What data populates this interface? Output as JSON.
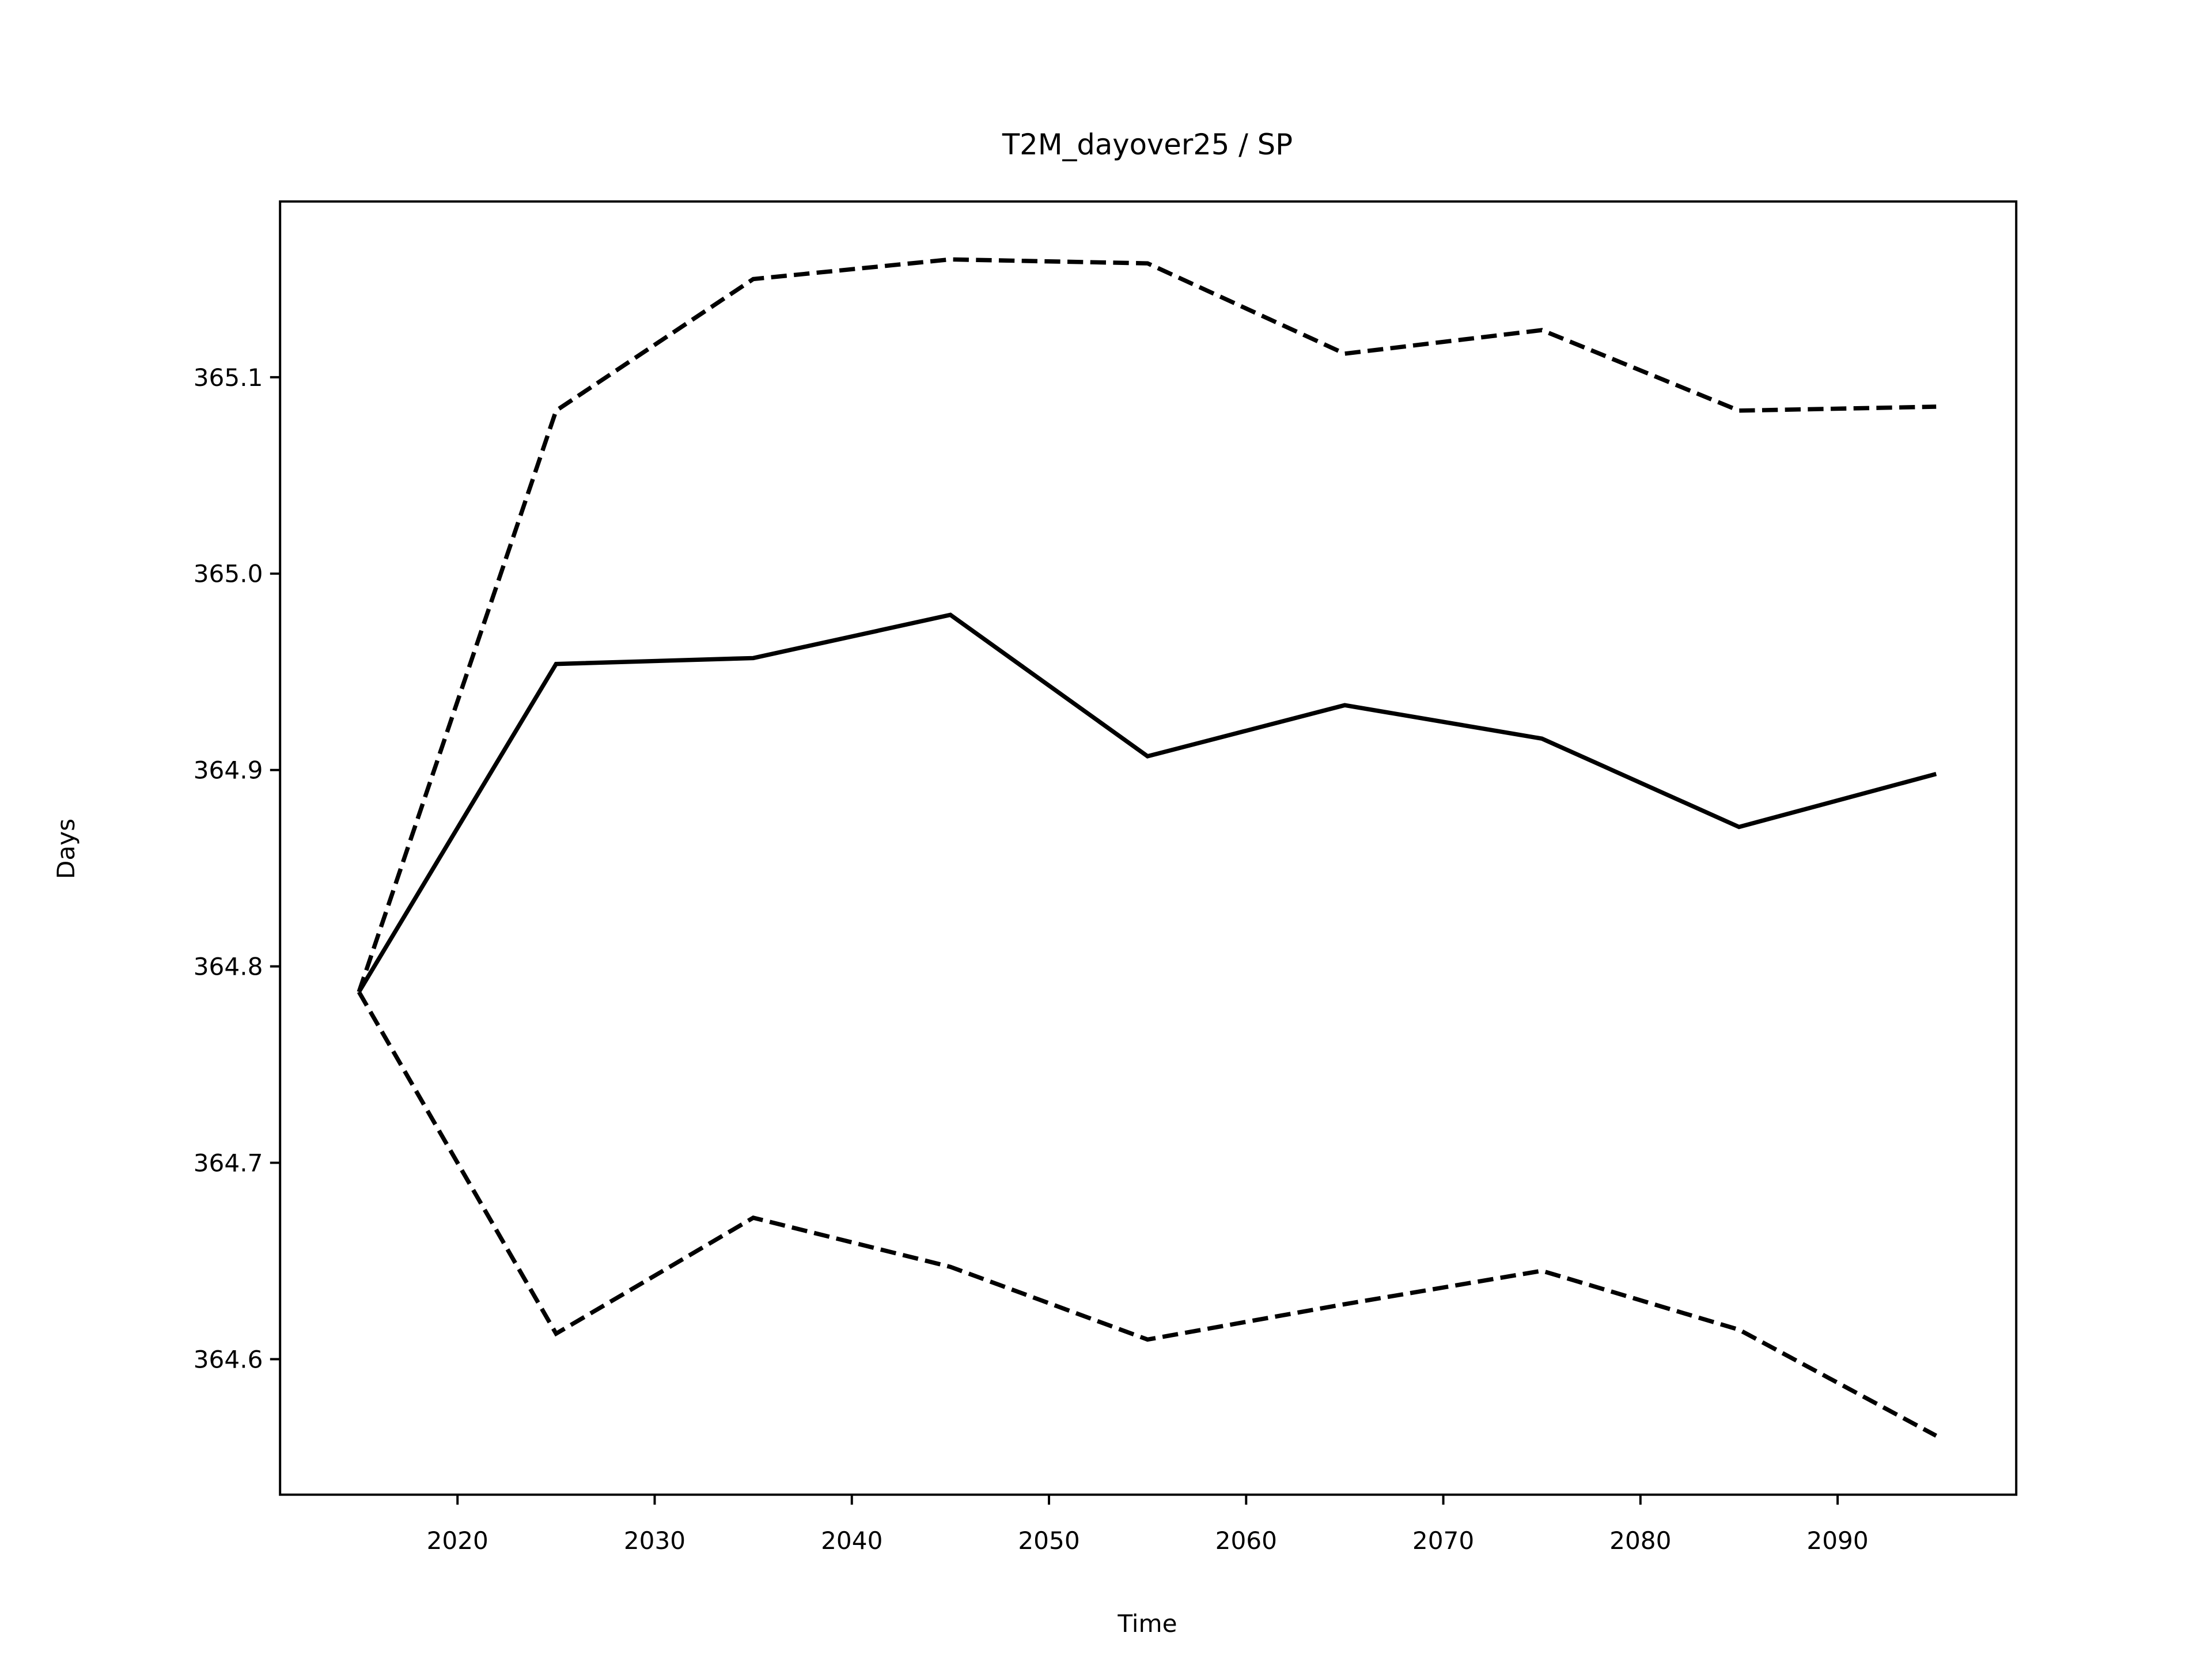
{
  "chart_data": {
    "type": "line",
    "title": "T2M_dayover25 / SP",
    "xlabel": "Time",
    "ylabel": "Days",
    "x": [
      2015,
      2025,
      2035,
      2045,
      2055,
      2065,
      2075,
      2085,
      2095
    ],
    "series": [
      {
        "color": "#000000",
        "dash": "solid",
        "values": [
          364.787,
          364.954,
          364.957,
          364.979,
          364.907,
          364.933,
          364.916,
          364.871,
          364.898
        ]
      },
      {
        "color": "#000000",
        "dash": "dashed",
        "values": [
          364.787,
          365.083,
          365.15,
          365.16,
          365.158,
          365.112,
          365.124,
          365.083,
          365.085
        ]
      },
      {
        "color": "#000000",
        "dash": "dashed",
        "values": [
          364.787,
          364.613,
          364.672,
          364.647,
          364.61,
          364.628,
          364.645,
          364.615,
          364.561
        ]
      }
    ],
    "xlim": [
      2011,
      2099.06
    ],
    "xticks": [
      2020,
      2030,
      2040,
      2050,
      2060,
      2070,
      2080,
      2090
    ],
    "ylim": [
      364.531,
      365.1895
    ],
    "yticks": [
      364.6,
      364.7,
      364.8,
      364.9,
      {
        "value": 365,
        "label": "365.0"
      },
      365.1
    ],
    "grid": false
  }
}
